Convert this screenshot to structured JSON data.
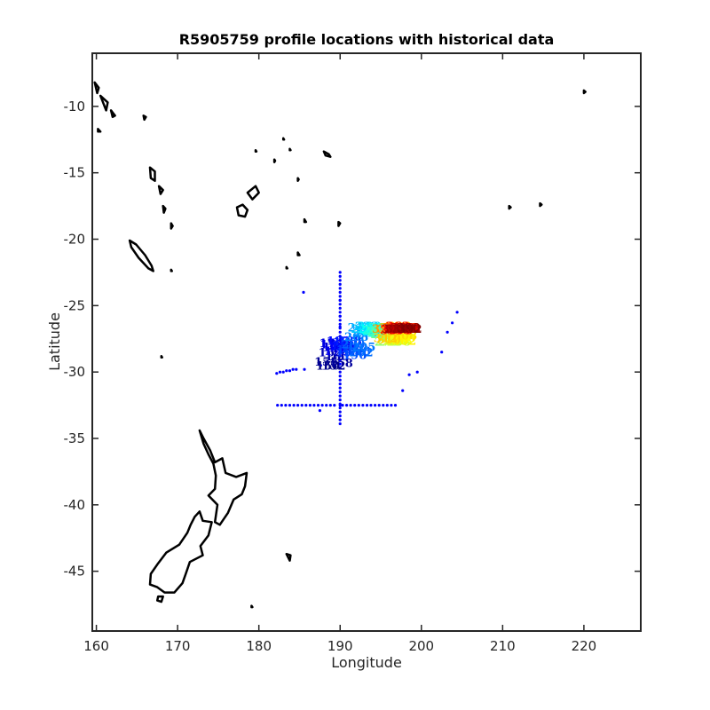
{
  "chart_data": {
    "type": "scatter",
    "title": "R5905759 profile locations with historical data",
    "xlabel": "Longitude",
    "ylabel": "Latitude",
    "xlim": [
      159.5,
      227
    ],
    "ylim": [
      -49.5,
      -6
    ],
    "xticks": [
      160,
      170,
      180,
      190,
      200,
      210,
      220
    ],
    "yticks": [
      -10,
      -15,
      -20,
      -25,
      -30,
      -35,
      -40,
      -45
    ],
    "grid": false,
    "colors": {
      "historical": "#0000ff",
      "coast": "#000000",
      "axes": "#262626"
    },
    "historical_points": {
      "x": [
        190,
        190,
        190,
        190,
        190,
        190,
        190,
        190,
        190,
        190,
        190,
        190,
        190,
        190,
        190,
        190,
        190,
        190,
        190,
        190,
        190,
        190,
        190,
        190,
        190,
        190,
        190,
        190,
        190,
        190,
        190,
        190,
        190,
        190,
        190,
        190,
        190,
        190,
        190,
        190,
        190,
        190,
        190,
        190,
        190,
        190,
        182.3,
        182.8,
        183.3,
        183.8,
        184.3,
        184.8,
        185.3,
        185.8,
        186.3,
        186.8,
        187.3,
        187.8,
        188.3,
        188.8,
        189.3,
        190.3,
        190.8,
        191.3,
        191.8,
        192.3,
        192.8,
        193.3,
        193.8,
        194.3,
        194.8,
        195.3,
        195.8,
        196.3,
        196.8,
        182.2,
        182.6,
        183,
        183.4,
        183.8,
        184.2,
        184.6,
        185.6,
        187.5,
        197.7,
        198.5,
        199.5,
        202.5,
        203.2,
        203.8,
        204.4,
        187.6,
        185.5
      ],
      "y": [
        -22.5,
        -22.8,
        -23.1,
        -23.4,
        -23.7,
        -24.0,
        -24.3,
        -24.6,
        -24.9,
        -25.2,
        -25.5,
        -25.8,
        -26.1,
        -26.4,
        -26.7,
        -27.0,
        -27.3,
        -27.6,
        -27.9,
        -28.2,
        -28.5,
        -28.8,
        -29.1,
        -29.4,
        -29.7,
        -30.0,
        -30.3,
        -30.6,
        -30.9,
        -31.2,
        -31.5,
        -31.8,
        -32.1,
        -32.4,
        -32.7,
        -33.0,
        -33.3,
        -33.6,
        -33.9,
        -24.6,
        -25.8,
        -26.6,
        -27.9,
        -28.5,
        -29.1,
        -32.5,
        -32.5,
        -32.5,
        -32.5,
        -32.5,
        -32.5,
        -32.5,
        -32.5,
        -32.5,
        -32.5,
        -32.5,
        -32.5,
        -32.5,
        -32.5,
        -32.5,
        -32.5,
        -32.5,
        -32.5,
        -32.5,
        -32.5,
        -32.5,
        -32.5,
        -32.5,
        -32.5,
        -32.5,
        -32.5,
        -32.5,
        -32.5,
        -32.5,
        -32.5,
        -30.1,
        -30.0,
        -30.0,
        -29.9,
        -29.9,
        -29.8,
        -29.8,
        -29.8,
        -32.9,
        -31.4,
        -30.2,
        -30.0,
        -28.5,
        -27.0,
        -26.3,
        -25.5,
        -29.5,
        -24.0
      ]
    },
    "profiles": {
      "labels": [
        "150",
        "152",
        "155",
        "158",
        "160",
        "162",
        "165",
        "168",
        "170",
        "172",
        "175",
        "178",
        "180",
        "182",
        "184",
        "186",
        "188",
        "190",
        "192",
        "194",
        "196",
        "198",
        "200",
        "202",
        "205",
        "208",
        "210",
        "212",
        "215",
        "218",
        "220",
        "222",
        "225",
        "228",
        "230",
        "232",
        "235",
        "238",
        "240",
        "242",
        "245",
        "248",
        "250",
        "252",
        "255",
        "258",
        "260",
        "262",
        "265",
        "268",
        "270",
        "272",
        "275",
        "278",
        "280",
        "282",
        "285",
        "288",
        "290",
        "292",
        "295",
        "298",
        "300",
        "302",
        "305",
        "308",
        "310",
        "312",
        "315",
        "318",
        "320",
        "322",
        "325",
        "328",
        "330",
        "332",
        "335",
        "338",
        "340",
        "342",
        "345",
        "348",
        "350",
        "352",
        "355",
        "358",
        "360",
        "362",
        "365",
        "368",
        "370",
        "372",
        "375",
        "378",
        "380",
        "382",
        "385",
        "388",
        "390",
        "392"
      ],
      "lon": [
        188.5,
        189.2,
        188.3,
        190.1,
        189.6,
        188.8,
        189.9,
        190.4,
        189.3,
        188.9,
        189.0,
        189.5,
        190.0,
        189.8,
        190.3,
        190.6,
        191.2,
        190.9,
        191.5,
        191.0,
        191.8,
        192.3,
        191.6,
        192.6,
        192.9,
        192.0,
        193.2,
        193.0,
        192.4,
        193.5,
        193.8,
        193.3,
        192.8,
        193.9,
        193.6,
        194.2,
        194.5,
        193.7,
        194.1,
        194.6,
        194.9,
        194.3,
        195.0,
        195.3,
        194.8,
        195.5,
        195.8,
        195.2,
        195.9,
        196.2,
        195.7,
        196.4,
        196.1,
        196.6,
        196.9,
        196.3,
        197.0,
        197.2,
        196.8,
        197.4,
        197.6,
        197.1,
        197.8,
        197.9,
        197.5,
        198.0,
        196.0,
        195.6,
        196.3,
        197.0,
        197.3,
        196.7,
        195.4,
        196.1,
        196.8,
        197.3,
        196.9,
        197.7,
        198.1,
        197.4,
        196.5,
        197.9,
        197.6,
        198.3,
        198.0,
        197.2,
        196.4,
        197.1,
        197.8,
        198.4,
        197.5,
        196.9,
        197.3,
        198.2,
        197.7,
        196.6,
        197.0,
        197.9,
        198.4,
        198.6
      ],
      "lat": [
        -29.6,
        -29.6,
        -29.3,
        -29.4,
        -28.9,
        -28.6,
        -28.1,
        -28.3,
        -28.2,
        -27.9,
        -28.0,
        -28.5,
        -28.2,
        -27.7,
        -28.1,
        -27.8,
        -27.7,
        -28.6,
        -28.3,
        -28.4,
        -28.8,
        -28.5,
        -28.0,
        -28.6,
        -28.2,
        -27.4,
        -27.1,
        -27.0,
        -26.7,
        -26.9,
        -26.8,
        -26.6,
        -26.8,
        -26.9,
        -26.6,
        -27.0,
        -26.7,
        -26.8,
        -26.9,
        -26.8,
        -27.1,
        -26.9,
        -26.7,
        -26.9,
        -27.0,
        -27.0,
        -27.2,
        -27.2,
        -27.2,
        -27.4,
        -27.8,
        -27.4,
        -27.8,
        -27.5,
        -27.3,
        -27.4,
        -27.7,
        -27.8,
        -27.7,
        -27.6,
        -27.3,
        -27.5,
        -27.5,
        -27.7,
        -27.0,
        -27.3,
        -27.6,
        -27.5,
        -26.7,
        -26.6,
        -26.6,
        -26.7,
        -26.8,
        -26.8,
        -26.7,
        -26.8,
        -26.7,
        -26.8,
        -26.7,
        -26.7,
        -26.8,
        -26.8,
        -26.7,
        -26.7,
        -26.8,
        -26.9,
        -26.9,
        -26.6,
        -26.8,
        -26.8,
        -26.9,
        -26.8,
        -26.8,
        -26.8,
        -26.7,
        -26.8,
        -26.8,
        -26.8,
        -26.7,
        -26.8
      ]
    },
    "colormap": "jet"
  }
}
